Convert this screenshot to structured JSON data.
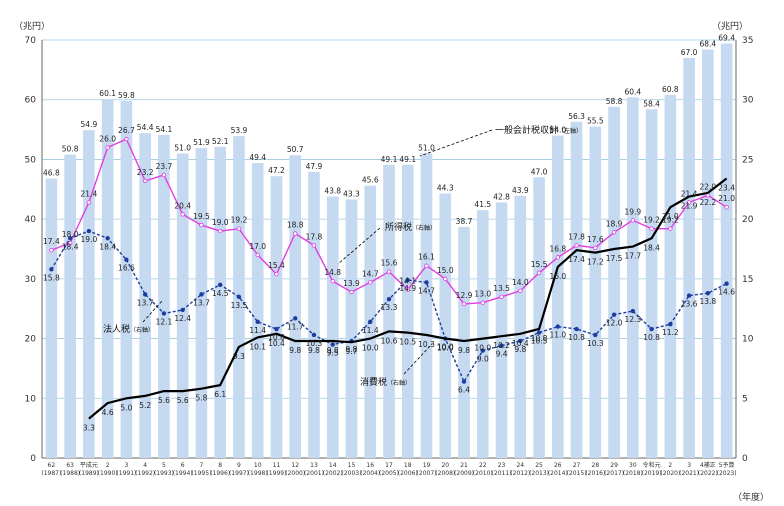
{
  "chart_data": {
    "type": "bar",
    "left_axis_unit": "（兆円）",
    "right_axis_unit": "（兆円）",
    "x_axis_unit": "（年度）",
    "left_ylim": [
      0,
      70
    ],
    "right_ylim": [
      0,
      35
    ],
    "left_ticks": [
      "0",
      "10",
      "20",
      "30",
      "40",
      "50",
      "60",
      "70"
    ],
    "right_ticks": [
      "0",
      "5",
      "10",
      "15",
      "20",
      "25",
      "30",
      "35"
    ],
    "categories": [
      {
        "era": "62",
        "year": "(1987)"
      },
      {
        "era": "63",
        "year": "(1988)"
      },
      {
        "era": "平成元",
        "year": "(1989)"
      },
      {
        "era": "2",
        "year": "(1990)"
      },
      {
        "era": "3",
        "year": "(1991)"
      },
      {
        "era": "4",
        "year": "(1992)"
      },
      {
        "era": "5",
        "year": "(1993)"
      },
      {
        "era": "6",
        "year": "(1994)"
      },
      {
        "era": "7",
        "year": "(1995)"
      },
      {
        "era": "8",
        "year": "(1996)"
      },
      {
        "era": "9",
        "year": "(1997)"
      },
      {
        "era": "10",
        "year": "(1998)"
      },
      {
        "era": "11",
        "year": "(1999)"
      },
      {
        "era": "12",
        "year": "(2000)"
      },
      {
        "era": "13",
        "year": "(2001)"
      },
      {
        "era": "14",
        "year": "(2002)"
      },
      {
        "era": "15",
        "year": "(2003)"
      },
      {
        "era": "16",
        "year": "(2004)"
      },
      {
        "era": "17",
        "year": "(2005)"
      },
      {
        "era": "18",
        "year": "(2006)"
      },
      {
        "era": "19",
        "year": "(2007)"
      },
      {
        "era": "20",
        "year": "(2008)"
      },
      {
        "era": "21",
        "year": "(2009)"
      },
      {
        "era": "22",
        "year": "(2010)"
      },
      {
        "era": "23",
        "year": "(2011)"
      },
      {
        "era": "24",
        "year": "(2012)"
      },
      {
        "era": "25",
        "year": "(2013)"
      },
      {
        "era": "26",
        "year": "(2014)"
      },
      {
        "era": "27",
        "year": "(2015)"
      },
      {
        "era": "28",
        "year": "(2016)"
      },
      {
        "era": "29",
        "year": "(2017)"
      },
      {
        "era": "30",
        "year": "(2018)"
      },
      {
        "era": "令和元",
        "year": "(2019)"
      },
      {
        "era": "2",
        "year": "(2020)"
      },
      {
        "era": "3",
        "year": "(2021)"
      },
      {
        "era": "4補正",
        "year": "(2022)"
      },
      {
        "era": "5予算",
        "year": "(2023)"
      }
    ],
    "series": [
      {
        "name": "一般会計税収計",
        "axis_note": "（左軸）",
        "kind": "bar",
        "axis": "left",
        "color": "#c5d9f1",
        "values": [
          46.8,
          50.8,
          54.9,
          60.1,
          59.8,
          54.4,
          54.1,
          51.0,
          51.9,
          52.1,
          53.9,
          49.4,
          47.2,
          50.7,
          47.9,
          43.8,
          43.3,
          45.6,
          49.1,
          49.1,
          51.0,
          44.3,
          38.7,
          41.5,
          42.8,
          43.9,
          47.0,
          54.0,
          56.3,
          55.5,
          58.8,
          60.4,
          58.4,
          60.8,
          67.0,
          68.4,
          69.4
        ]
      },
      {
        "name": "所得税",
        "axis_note": "（右軸）",
        "kind": "line",
        "axis": "right",
        "color": "#e040e0",
        "values": [
          17.4,
          18.0,
          21.4,
          26.0,
          26.7,
          23.2,
          23.7,
          20.4,
          19.5,
          19.0,
          19.2,
          17.0,
          15.4,
          18.8,
          17.8,
          14.8,
          13.9,
          14.7,
          15.6,
          14.1,
          16.1,
          15.0,
          12.9,
          13.0,
          13.5,
          14.0,
          15.5,
          16.8,
          17.8,
          17.6,
          18.9,
          19.9,
          19.2,
          19.2,
          21.4,
          22.0,
          21.0
        ]
      },
      {
        "name": "法人税",
        "axis_note": "（右軸）",
        "kind": "line",
        "axis": "right",
        "color": "#1f3d9c",
        "values": [
          15.8,
          18.4,
          19.0,
          18.4,
          16.6,
          13.7,
          12.1,
          12.4,
          13.7,
          14.5,
          13.5,
          11.4,
          10.8,
          11.7,
          10.3,
          9.5,
          9.8,
          11.4,
          13.3,
          14.9,
          14.7,
          10.0,
          6.4,
          9.0,
          9.4,
          9.8,
          10.5,
          11.0,
          10.8,
          10.3,
          12.0,
          12.3,
          10.8,
          11.2,
          13.6,
          13.8,
          14.6
        ]
      },
      {
        "name": "消費税",
        "axis_note": "（右軸）",
        "kind": "line",
        "axis": "right",
        "color": "#000000",
        "values": [
          null,
          null,
          3.3,
          4.6,
          5.0,
          5.2,
          5.6,
          5.6,
          5.8,
          6.1,
          9.3,
          10.1,
          10.4,
          9.8,
          9.8,
          9.8,
          9.7,
          10.0,
          10.6,
          10.5,
          10.3,
          10.0,
          9.8,
          10.0,
          10.2,
          10.4,
          10.8,
          16.0,
          17.4,
          17.2,
          17.5,
          17.7,
          18.4,
          21.0,
          21.9,
          22.2,
          23.4
        ]
      }
    ]
  }
}
